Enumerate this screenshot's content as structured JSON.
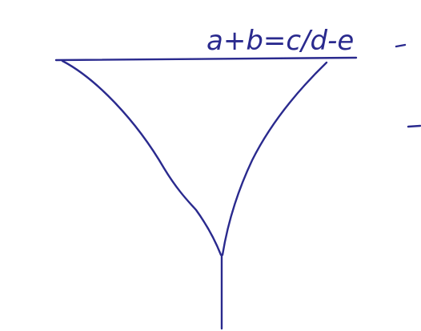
{
  "expression": {
    "text": "a+b=c/d-e"
  },
  "colors": {
    "ink": "#2a2a8e",
    "paper": "#ffffff"
  }
}
